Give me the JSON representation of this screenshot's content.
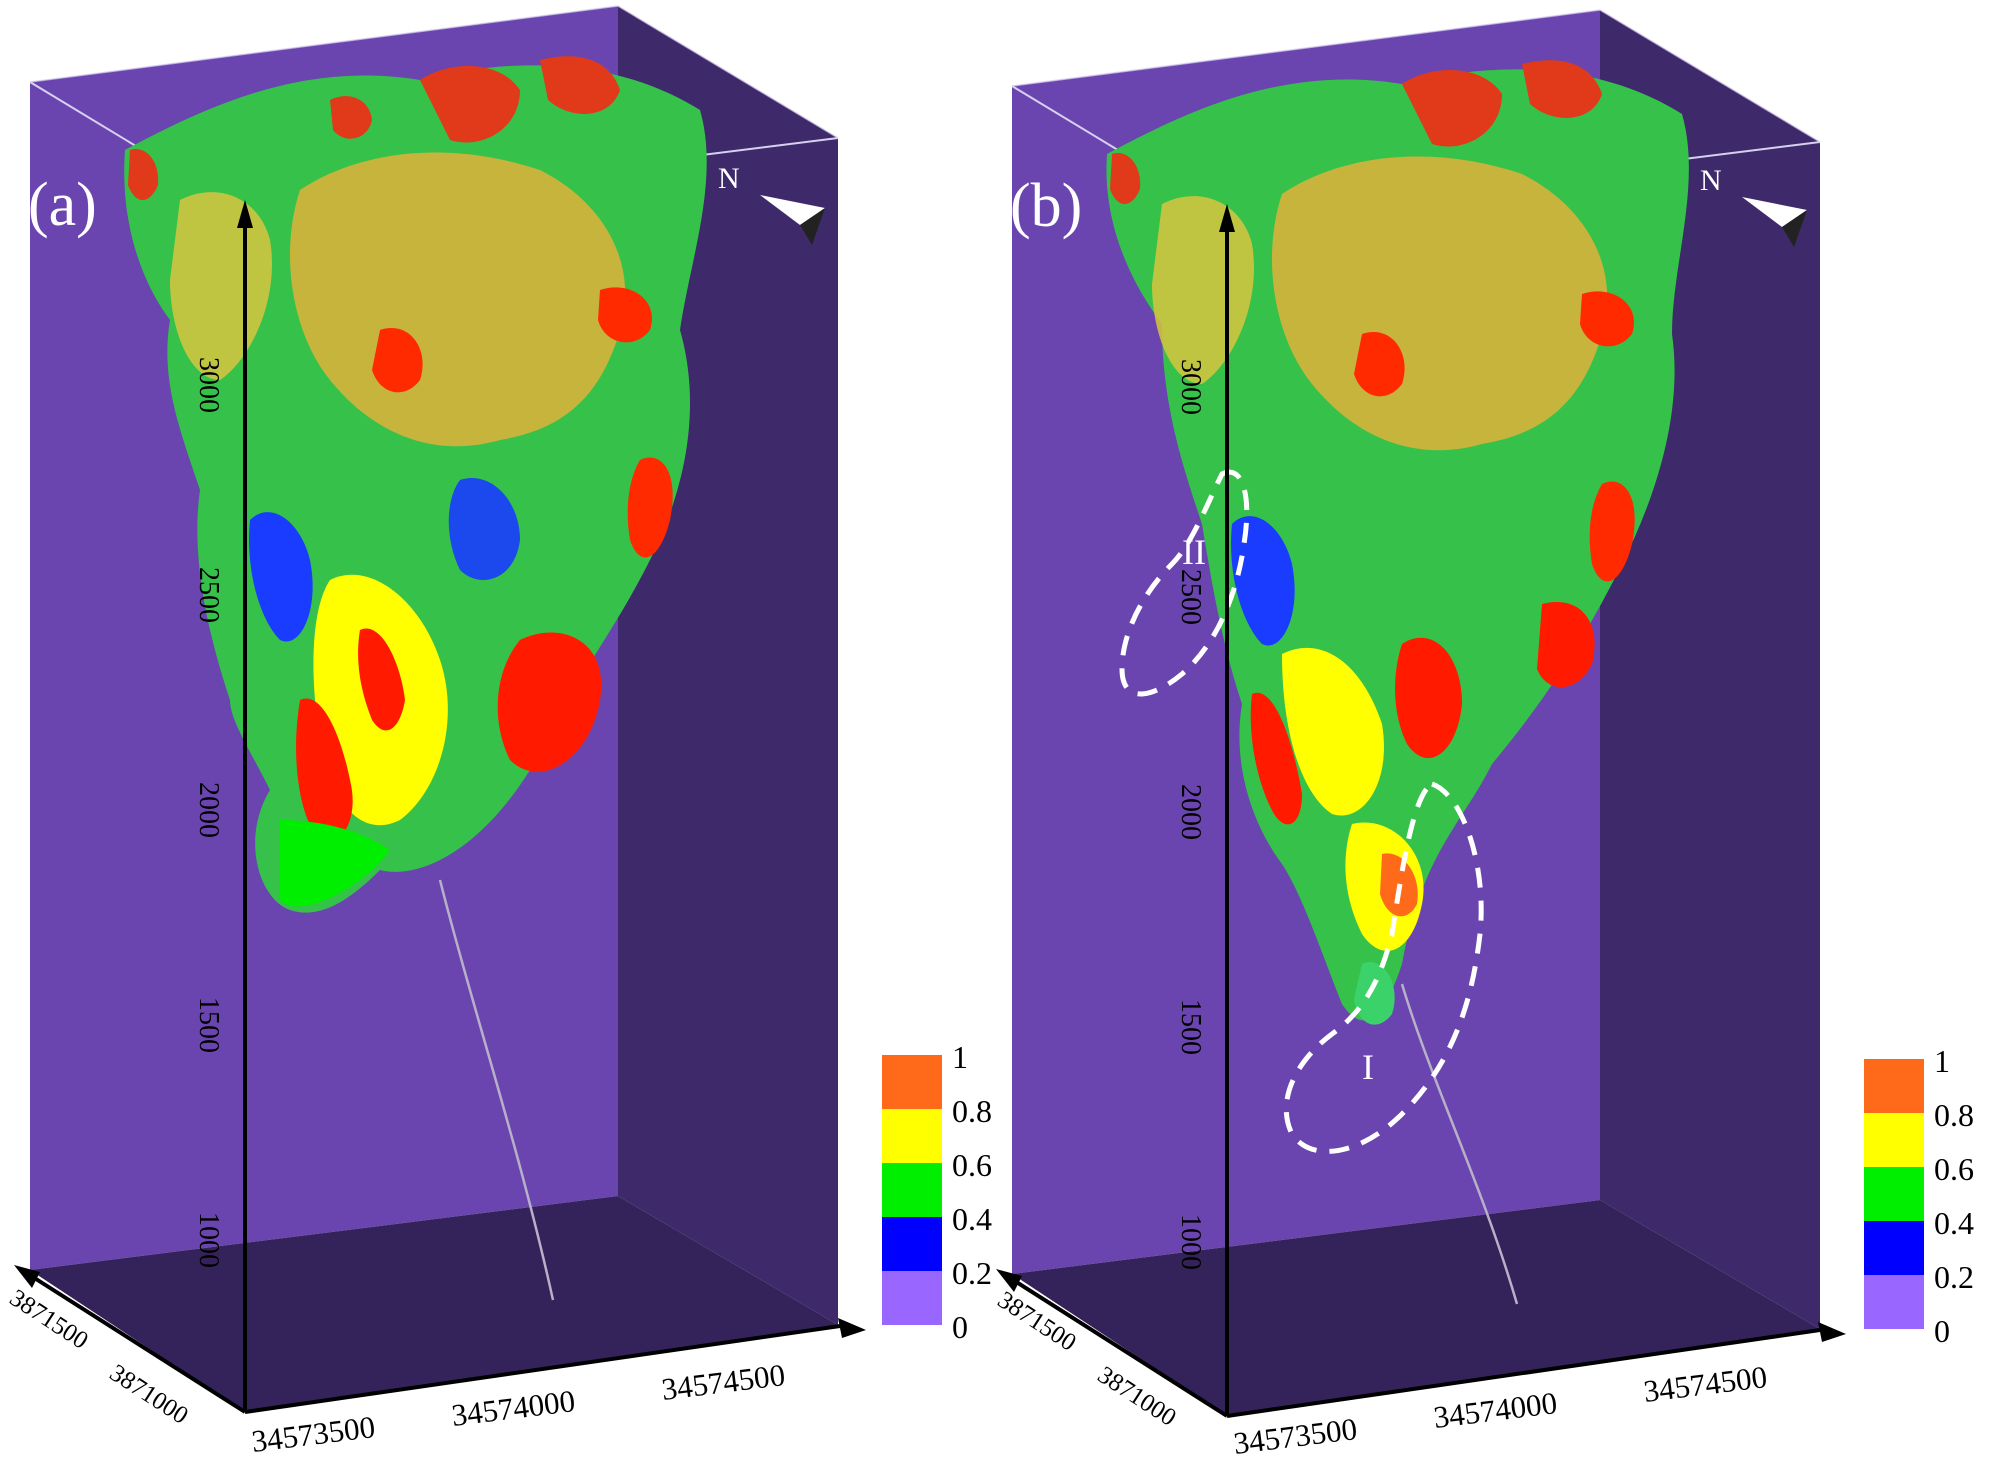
{
  "panels": [
    {
      "label": "(a)",
      "north": "N",
      "depth_ticks": [
        "3000",
        "2500",
        "2000",
        "1500",
        "1000"
      ],
      "x_ticks": [
        "34573500",
        "34574000",
        "34574500"
      ],
      "y_ticks": [
        "3871500",
        "3871000"
      ],
      "annotations": []
    },
    {
      "label": "(b)",
      "north": "N",
      "depth_ticks": [
        "3000",
        "2500",
        "2000",
        "1500",
        "1000"
      ],
      "x_ticks": [
        "34573500",
        "34574000",
        "34574500"
      ],
      "y_ticks": [
        "3871500",
        "3871000"
      ],
      "annotations": [
        "II",
        "I"
      ]
    }
  ],
  "colorbar": {
    "ticks": [
      "1",
      "0.8",
      "0.6",
      "0.4",
      "0.2",
      "0"
    ],
    "colors": [
      "#ff6a1a",
      "#ffff00",
      "#00ee00",
      "#0000ff",
      "#9966ff"
    ]
  },
  "colors": {
    "box_face": "#6a45b0",
    "box_side": "#3e2a6b",
    "box_floor": "#33235a"
  }
}
